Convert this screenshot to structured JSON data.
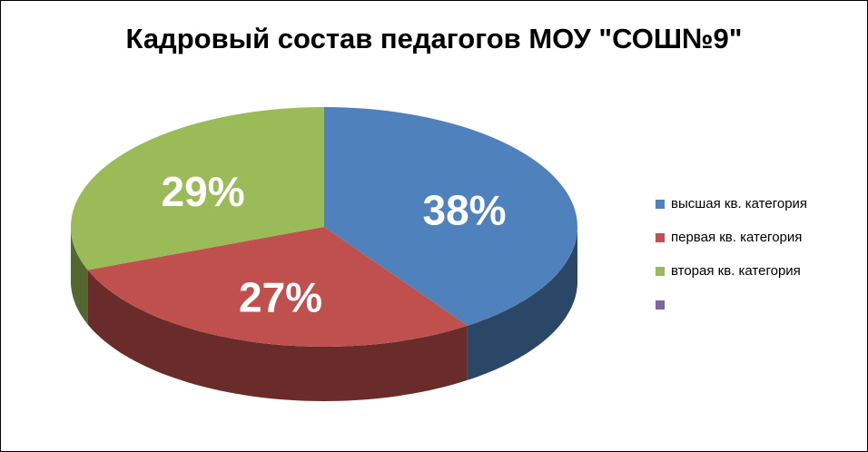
{
  "chart_data": {
    "type": "pie",
    "title": "Кадровый  состав педагогов МОУ \"СОШ№9\"",
    "categories": [
      "высшая кв. категория",
      "первая кв. категория",
      "вторая кв. категория",
      null
    ],
    "values": [
      38,
      27,
      29,
      null
    ],
    "value_labels": [
      "38%",
      "27%",
      "29%",
      null
    ],
    "colors": [
      "#4f81bd",
      "#c0504d",
      "#9bbb59",
      "#8064a2"
    ],
    "legend": "right"
  }
}
